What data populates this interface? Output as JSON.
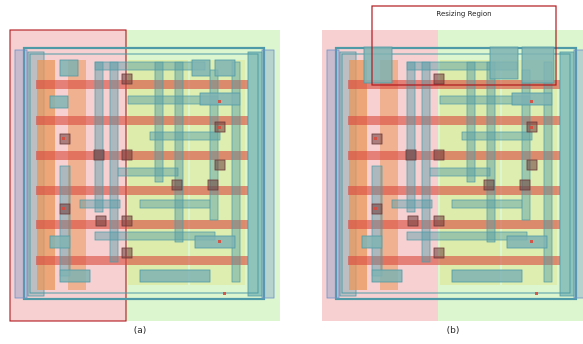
{
  "figure": {
    "panels": [
      {
        "id": "a",
        "caption": "(a)"
      },
      {
        "id": "b",
        "caption": "(b)",
        "region_label": "Resizing Region"
      }
    ]
  },
  "colors": {
    "background": "#ffffff",
    "cell_pink": "#f6c9c9",
    "cell_green": "#d6f5c8",
    "red_frame": "#b0191e",
    "diffusion_orange": "#e9975a",
    "poly_red": "#d84a3e",
    "metal_teal": "#4f9aa7",
    "metal_fill": "#7fb3b3",
    "gate_yellow": "#dfe48a",
    "contact_dark": "#6b3b3b",
    "rail_blue": "#6f93c8",
    "region_box": "#b0191e"
  }
}
